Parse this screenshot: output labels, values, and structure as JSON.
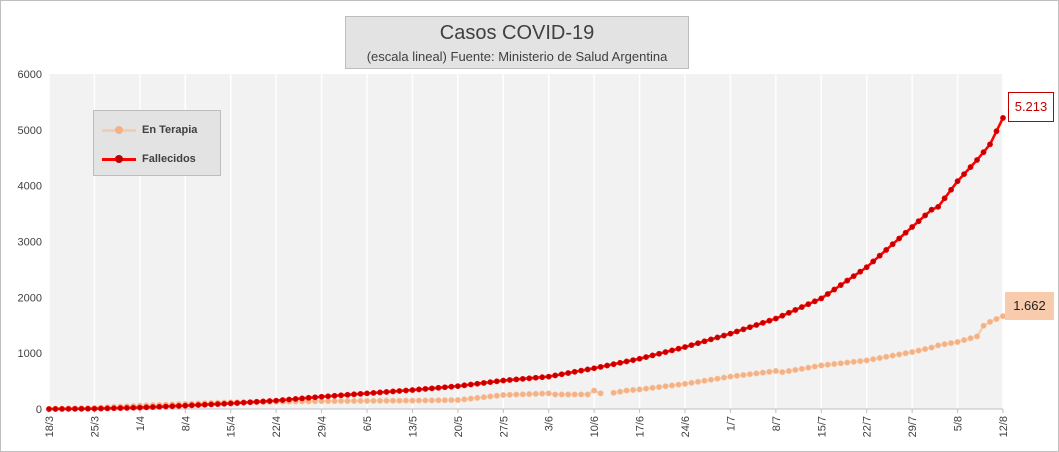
{
  "chart_data": {
    "type": "line",
    "title": "Casos COVID-19",
    "subtitle": "(escala lineal) Fuente: Ministerio de Salud Argentina",
    "ylim": [
      0,
      6000
    ],
    "y_ticks": [
      "0",
      "1000",
      "2000",
      "3000",
      "4000",
      "5000",
      "6000"
    ],
    "y_tick_values": [
      0,
      1000,
      2000,
      3000,
      4000,
      5000,
      6000
    ],
    "x_start": "18/3",
    "x_end": "12/8",
    "x_ticks": [
      "18/3",
      "25/3",
      "1/4",
      "8/4",
      "15/4",
      "22/4",
      "29/4",
      "6/5",
      "13/5",
      "20/5",
      "27/5",
      "3/6",
      "10/6",
      "17/6",
      "24/6",
      "1/7",
      "8/7",
      "15/7",
      "22/7",
      "29/7",
      "5/8",
      "12/8"
    ],
    "legend_position": "top-left, inside plot",
    "grid": "vertical lines at weekly ticks",
    "series": [
      {
        "name": "En Terapia",
        "color": "#f8cbad",
        "marker_color": "#f4b183",
        "points": [
          [
            "18/3",
            0
          ],
          [
            "25/3",
            20
          ],
          [
            "1/4",
            60
          ],
          [
            "8/4",
            90
          ],
          [
            "15/4",
            120
          ],
          [
            "22/4",
            130
          ],
          [
            "29/4",
            140
          ],
          [
            "6/5",
            145
          ],
          [
            "13/5",
            150
          ],
          [
            "20/5",
            160
          ],
          [
            "27/5",
            250
          ],
          [
            "3/6",
            280
          ],
          [
            "4/6",
            260
          ],
          [
            "9/6",
            260
          ],
          [
            "10/6",
            330
          ],
          [
            "11/6",
            280
          ],
          [
            "13/6",
            290
          ],
          [
            "15/6",
            330
          ],
          [
            "17/6",
            350
          ],
          [
            "24/6",
            450
          ],
          [
            "1/7",
            580
          ],
          [
            "8/7",
            680
          ],
          [
            "9/7",
            660
          ],
          [
            "15/7",
            780
          ],
          [
            "22/7",
            870
          ],
          [
            "29/7",
            1020
          ],
          [
            "1/8",
            1100
          ],
          [
            "2/8",
            1140
          ],
          [
            "5/8",
            1200
          ],
          [
            "8/8",
            1300
          ],
          [
            "9/8",
            1490
          ],
          [
            "10/8",
            1560
          ],
          [
            "12/8",
            1662
          ]
        ],
        "gap_after": "11/6",
        "gap_before": "13/6",
        "label": "1.662"
      },
      {
        "name": "Fallecidos",
        "color": "#ff0000",
        "marker_color": "#c00000",
        "points": [
          [
            "18/3",
            0
          ],
          [
            "25/3",
            5
          ],
          [
            "1/4",
            25
          ],
          [
            "8/4",
            60
          ],
          [
            "15/4",
            100
          ],
          [
            "22/4",
            150
          ],
          [
            "29/4",
            220
          ],
          [
            "6/5",
            280
          ],
          [
            "13/5",
            340
          ],
          [
            "20/5",
            410
          ],
          [
            "27/5",
            510
          ],
          [
            "3/6",
            580
          ],
          [
            "10/6",
            730
          ],
          [
            "17/6",
            900
          ],
          [
            "24/6",
            1110
          ],
          [
            "1/7",
            1350
          ],
          [
            "8/7",
            1620
          ],
          [
            "15/7",
            1980
          ],
          [
            "22/7",
            2540
          ],
          [
            "29/7",
            3260
          ],
          [
            "1/8",
            3570
          ],
          [
            "2/8",
            3620
          ],
          [
            "5/8",
            4080
          ],
          [
            "8/8",
            4460
          ],
          [
            "10/8",
            4740
          ],
          [
            "12/8",
            5213
          ]
        ],
        "label": "5.213"
      }
    ]
  }
}
